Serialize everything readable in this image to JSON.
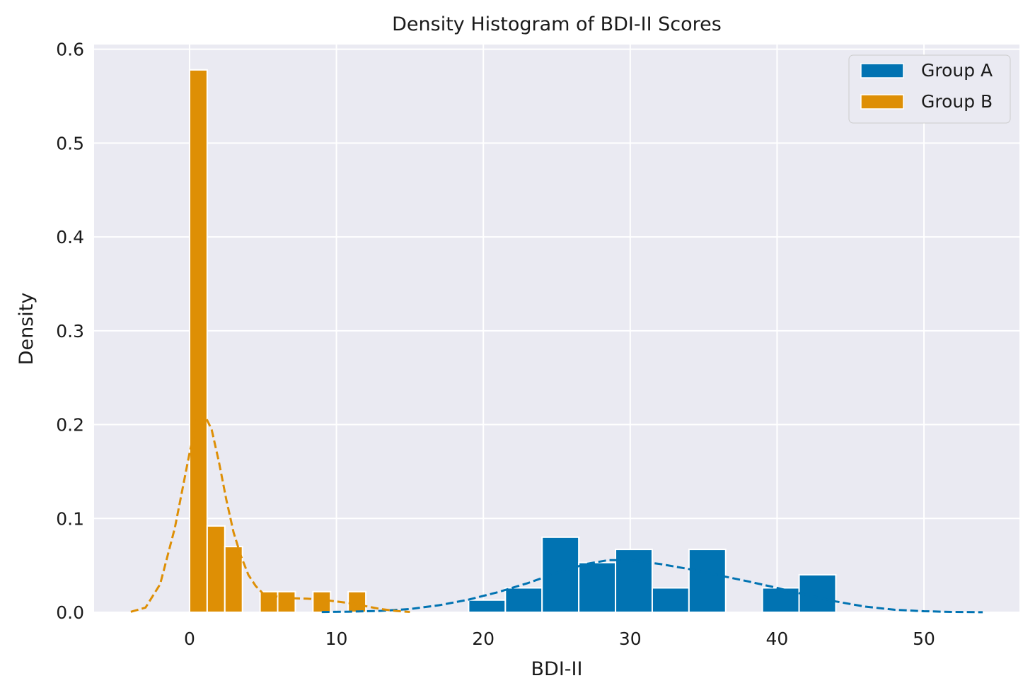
{
  "chart_data": {
    "type": "histogram",
    "title": "Density Histogram of BDI-II Scores",
    "xlabel": "BDI-II",
    "ylabel": "Density",
    "xlim": [
      -6.5,
      56.5
    ],
    "ylim": [
      0,
      0.605
    ],
    "xticks": [
      0,
      10,
      20,
      30,
      40,
      50
    ],
    "yticks": [
      0.0,
      0.1,
      0.2,
      0.3,
      0.4,
      0.5,
      0.6
    ],
    "grid": true,
    "legend_position": "top-right",
    "series": [
      {
        "name": "Group A",
        "color": "#0173b2",
        "bins": [
          {
            "x0": 19.0,
            "x1": 21.5,
            "value": 0.013
          },
          {
            "x0": 21.5,
            "x1": 24.0,
            "value": 0.026
          },
          {
            "x0": 24.0,
            "x1": 26.5,
            "value": 0.08
          },
          {
            "x0": 26.5,
            "x1": 29.0,
            "value": 0.053
          },
          {
            "x0": 29.0,
            "x1": 31.5,
            "value": 0.067
          },
          {
            "x0": 31.5,
            "x1": 34.0,
            "value": 0.026
          },
          {
            "x0": 34.0,
            "x1": 36.5,
            "value": 0.067
          },
          {
            "x0": 36.5,
            "x1": 39.0,
            "value": 0.0
          },
          {
            "x0": 39.0,
            "x1": 41.5,
            "value": 0.026
          },
          {
            "x0": 41.5,
            "x1": 44.0,
            "value": 0.04
          }
        ],
        "kde": [
          [
            9,
            0.0003
          ],
          [
            11,
            0.0007
          ],
          [
            13,
            0.0015
          ],
          [
            15,
            0.0035
          ],
          [
            17,
            0.0075
          ],
          [
            19,
            0.0135
          ],
          [
            21,
            0.0215
          ],
          [
            23,
            0.031
          ],
          [
            25,
            0.042
          ],
          [
            27,
            0.0515
          ],
          [
            28.5,
            0.0555
          ],
          [
            30,
            0.0555
          ],
          [
            32,
            0.0515
          ],
          [
            34,
            0.046
          ],
          [
            36,
            0.0395
          ],
          [
            38,
            0.033
          ],
          [
            40,
            0.026
          ],
          [
            42,
            0.0185
          ],
          [
            44,
            0.0115
          ],
          [
            46,
            0.006
          ],
          [
            48,
            0.0027
          ],
          [
            50,
            0.0011
          ],
          [
            52,
            0.0004
          ],
          [
            54,
            0.0001
          ]
        ]
      },
      {
        "name": "Group B",
        "color": "#de8f05",
        "bins": [
          {
            "x0": 0.0,
            "x1": 1.2,
            "value": 0.578
          },
          {
            "x0": 1.2,
            "x1": 2.4,
            "value": 0.092
          },
          {
            "x0": 2.4,
            "x1": 3.6,
            "value": 0.07
          },
          {
            "x0": 3.6,
            "x1": 4.8,
            "value": 0.0
          },
          {
            "x0": 4.8,
            "x1": 6.0,
            "value": 0.022
          },
          {
            "x0": 6.0,
            "x1": 7.2,
            "value": 0.022
          },
          {
            "x0": 7.2,
            "x1": 8.4,
            "value": 0.0
          },
          {
            "x0": 8.4,
            "x1": 9.6,
            "value": 0.022
          },
          {
            "x0": 9.6,
            "x1": 10.8,
            "value": 0.0
          },
          {
            "x0": 10.8,
            "x1": 12.0,
            "value": 0.022
          }
        ],
        "kde": [
          [
            -4,
            0.0005
          ],
          [
            -3,
            0.005
          ],
          [
            -2,
            0.03
          ],
          [
            -1,
            0.09
          ],
          [
            0,
            0.17
          ],
          [
            0.5,
            0.205
          ],
          [
            1,
            0.211
          ],
          [
            1.5,
            0.195
          ],
          [
            2,
            0.16
          ],
          [
            2.5,
            0.12
          ],
          [
            3,
            0.085
          ],
          [
            3.5,
            0.06
          ],
          [
            4,
            0.04
          ],
          [
            4.5,
            0.028
          ],
          [
            5,
            0.02
          ],
          [
            6,
            0.0165
          ],
          [
            7,
            0.015
          ],
          [
            8,
            0.0145
          ],
          [
            9,
            0.0135
          ],
          [
            10,
            0.0115
          ],
          [
            11,
            0.0095
          ],
          [
            12,
            0.0065
          ],
          [
            13,
            0.0035
          ],
          [
            14,
            0.0015
          ],
          [
            15,
            0.0004
          ]
        ]
      }
    ]
  }
}
